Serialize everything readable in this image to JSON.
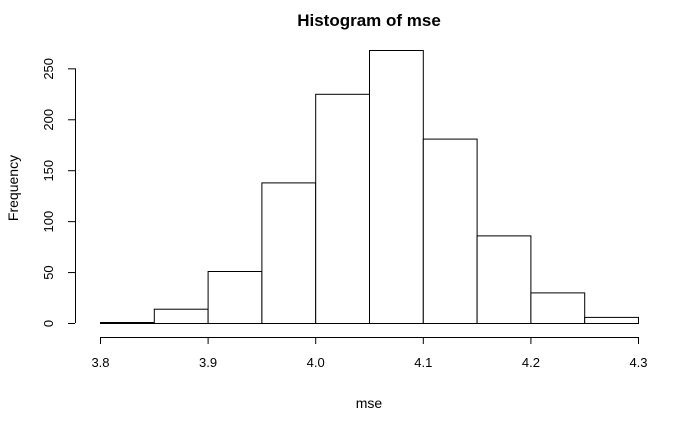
{
  "chart_data": {
    "type": "bar",
    "title": "Histogram of mse",
    "xlabel": "mse",
    "ylabel": "Frequency",
    "xlim": [
      3.8,
      4.3
    ],
    "ylim": [
      0,
      268
    ],
    "bins": [
      {
        "start": 3.8,
        "end": 3.85,
        "count": 1
      },
      {
        "start": 3.85,
        "end": 3.9,
        "count": 14
      },
      {
        "start": 3.9,
        "end": 3.95,
        "count": 51
      },
      {
        "start": 3.95,
        "end": 4.0,
        "count": 138
      },
      {
        "start": 4.0,
        "end": 4.05,
        "count": 225
      },
      {
        "start": 4.05,
        "end": 4.1,
        "count": 268
      },
      {
        "start": 4.1,
        "end": 4.15,
        "count": 181
      },
      {
        "start": 4.15,
        "end": 4.2,
        "count": 86
      },
      {
        "start": 4.2,
        "end": 4.25,
        "count": 30
      },
      {
        "start": 4.25,
        "end": 4.3,
        "count": 6
      }
    ],
    "x_ticks": [
      3.8,
      3.9,
      4.0,
      4.1,
      4.2,
      4.3
    ],
    "x_tick_labels": [
      "3.8",
      "3.9",
      "4.0",
      "4.1",
      "4.2",
      "4.3"
    ],
    "y_ticks": [
      0,
      50,
      100,
      150,
      200,
      250
    ],
    "y_tick_labels": [
      "0",
      "50",
      "100",
      "150",
      "200",
      "250"
    ],
    "grid": false,
    "legend": "none"
  }
}
